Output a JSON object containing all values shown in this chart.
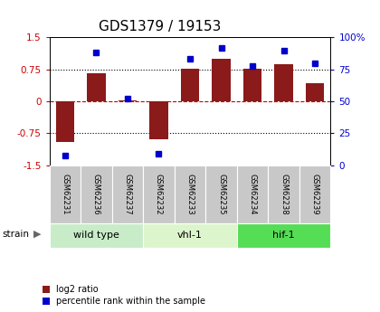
{
  "title": "GDS1379 / 19153",
  "samples": [
    "GSM62231",
    "GSM62236",
    "GSM62237",
    "GSM62232",
    "GSM62233",
    "GSM62235",
    "GSM62234",
    "GSM62238",
    "GSM62239"
  ],
  "log2_ratio": [
    -0.95,
    0.65,
    0.02,
    -0.88,
    0.77,
    1.0,
    0.76,
    0.88,
    0.42
  ],
  "percentile": [
    8,
    88,
    52,
    9,
    83,
    92,
    78,
    90,
    80
  ],
  "groups": [
    {
      "label": "wild type",
      "start": 0,
      "end": 3,
      "color": "#c8ecc8"
    },
    {
      "label": "vhl-1",
      "start": 3,
      "end": 6,
      "color": "#ddf5cc"
    },
    {
      "label": "hif-1",
      "start": 6,
      "end": 9,
      "color": "#55dd55"
    }
  ],
  "ylim_left": [
    -1.5,
    1.5
  ],
  "ylim_right": [
    0,
    100
  ],
  "yticks_left": [
    -1.5,
    -0.75,
    0,
    0.75,
    1.5
  ],
  "yticks_right": [
    0,
    25,
    50,
    75,
    100
  ],
  "bar_color": "#8b1a1a",
  "dot_color": "#0000cc",
  "hline_color": "#cc0000",
  "bg_color": "#ffffff",
  "sample_box_color": "#c8c8c8",
  "title_fontsize": 11,
  "legend_items": [
    "log2 ratio",
    "percentile rank within the sample"
  ]
}
